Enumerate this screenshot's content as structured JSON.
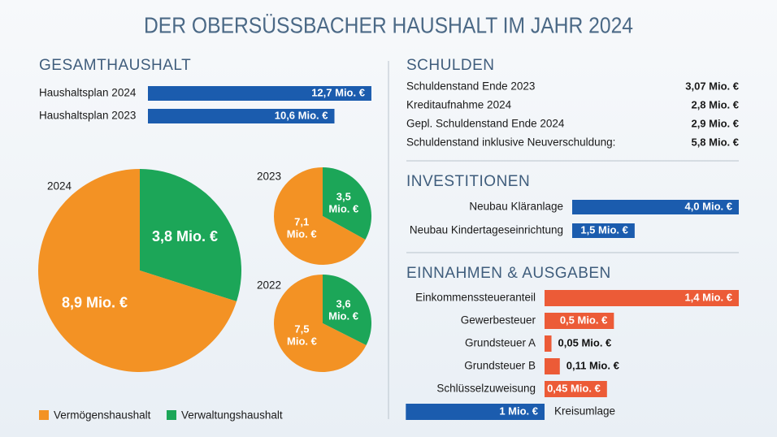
{
  "title": "DER OBERSÜSSBACHER HAUSHALT IM JAHR 2024",
  "debt": {
    "title": "SCHULDEN",
    "rows": [
      [
        "Schuldenstand Ende 2023",
        "3,07 Mio. €"
      ],
      [
        "Kreditaufnahme 2024",
        "2,8 Mio. €"
      ],
      [
        "Gepl. Schuldenstand Ende 2024",
        "2,9 Mio. €"
      ],
      [
        "Schuldenstand inklusive Neuverschuldung:",
        "5,8 Mio. €"
      ]
    ]
  },
  "chart_data": [
    {
      "type": "hbar",
      "title": "GESAMTHAUSHALT",
      "categories": [
        "Haushaltsplan 2024",
        "Haushaltsplan 2023"
      ],
      "values": [
        12.7,
        10.6
      ],
      "value_labels": [
        "12,7 Mio. €",
        "10,6 Mio. €"
      ],
      "color": "#1b5cae"
    },
    {
      "type": "pie",
      "legend": [
        {
          "name": "Vermögenshaushalt",
          "color": "#f39224"
        },
        {
          "name": "Verwaltungshaushalt",
          "color": "#1ca658"
        }
      ],
      "pies": [
        {
          "label": "2024",
          "values": [
            8.9,
            3.8
          ],
          "value_labels": [
            "8,9 Mio. €",
            "3,8 Mio. €"
          ]
        },
        {
          "label": "2023",
          "values": [
            7.1,
            3.5
          ],
          "value_labels": [
            "7,1 Mio. €",
            "3,5 Mio. €"
          ]
        },
        {
          "label": "2022",
          "values": [
            7.5,
            3.6
          ],
          "value_labels": [
            "7,5 Mio. €",
            "3,6 Mio. €"
          ]
        }
      ]
    },
    {
      "type": "hbar",
      "title": "INVESTITIONEN",
      "categories": [
        "Neubau Kläranlage",
        "Neubau Kindertageseinrichtung"
      ],
      "values": [
        4.0,
        1.5
      ],
      "value_labels": [
        "4,0 Mio. €",
        "1,5 Mio. €"
      ],
      "color": "#1b5cae"
    },
    {
      "type": "hbar",
      "title": "EINNAHMEN & AUSGABEN",
      "categories": [
        "Einkommenssteueranteil",
        "Gewerbesteuer",
        "Grundsteuer A",
        "Grundsteuer B",
        "Schlüsselzuweisung",
        "Kreisumlage"
      ],
      "values": [
        1.4,
        0.5,
        0.05,
        0.11,
        0.45,
        1
      ],
      "value_labels": [
        "1,4 Mio. €",
        "0,5 Mio. €",
        "0,05 Mio. €",
        "0,11 Mio. €",
        "0,45 Mio. €",
        "1 Mio. €"
      ],
      "colors": [
        "#ec5b37",
        "#ec5b37",
        "#ec5b37",
        "#ec5b37",
        "#ec5b37",
        "#1b5cae"
      ],
      "sides": [
        "right",
        "right",
        "right",
        "right",
        "right",
        "left"
      ]
    }
  ]
}
